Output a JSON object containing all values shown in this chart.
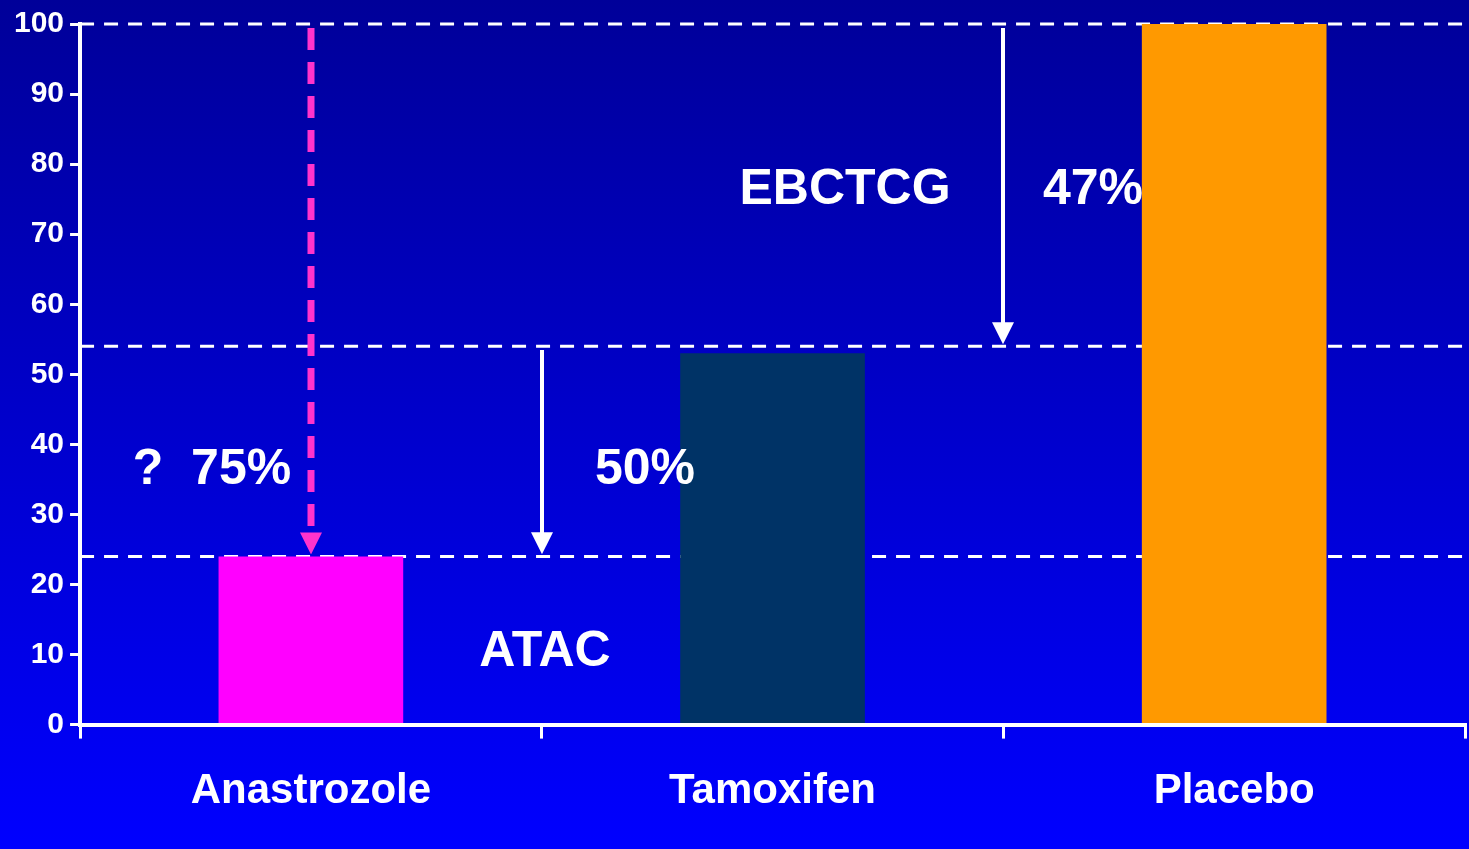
{
  "chart_data": {
    "type": "bar",
    "categories": [
      "Anastrozole",
      "Tamoxifen",
      "Placebo"
    ],
    "values": [
      24,
      53,
      100
    ],
    "colors": [
      "#ff00ff",
      "#003366",
      "#ff9900"
    ],
    "ylim": [
      0,
      100
    ],
    "yticks": [
      0,
      10,
      20,
      30,
      40,
      50,
      60,
      70,
      80,
      90,
      100
    ],
    "grid": false,
    "legend": false,
    "ref_lines": [
      {
        "axis": "y",
        "value": 100,
        "color": "#ffffff",
        "line_style": "dashed"
      },
      {
        "axis": "y",
        "value": 54,
        "color": "#ffffff",
        "line_style": "dashed"
      },
      {
        "axis": "y",
        "value": 24,
        "color": "#ffffff",
        "line_style": "dashed"
      }
    ],
    "annotations": [
      "EBCTCG",
      "47%",
      "ATAC",
      "50%",
      "?  75%"
    ]
  }
}
